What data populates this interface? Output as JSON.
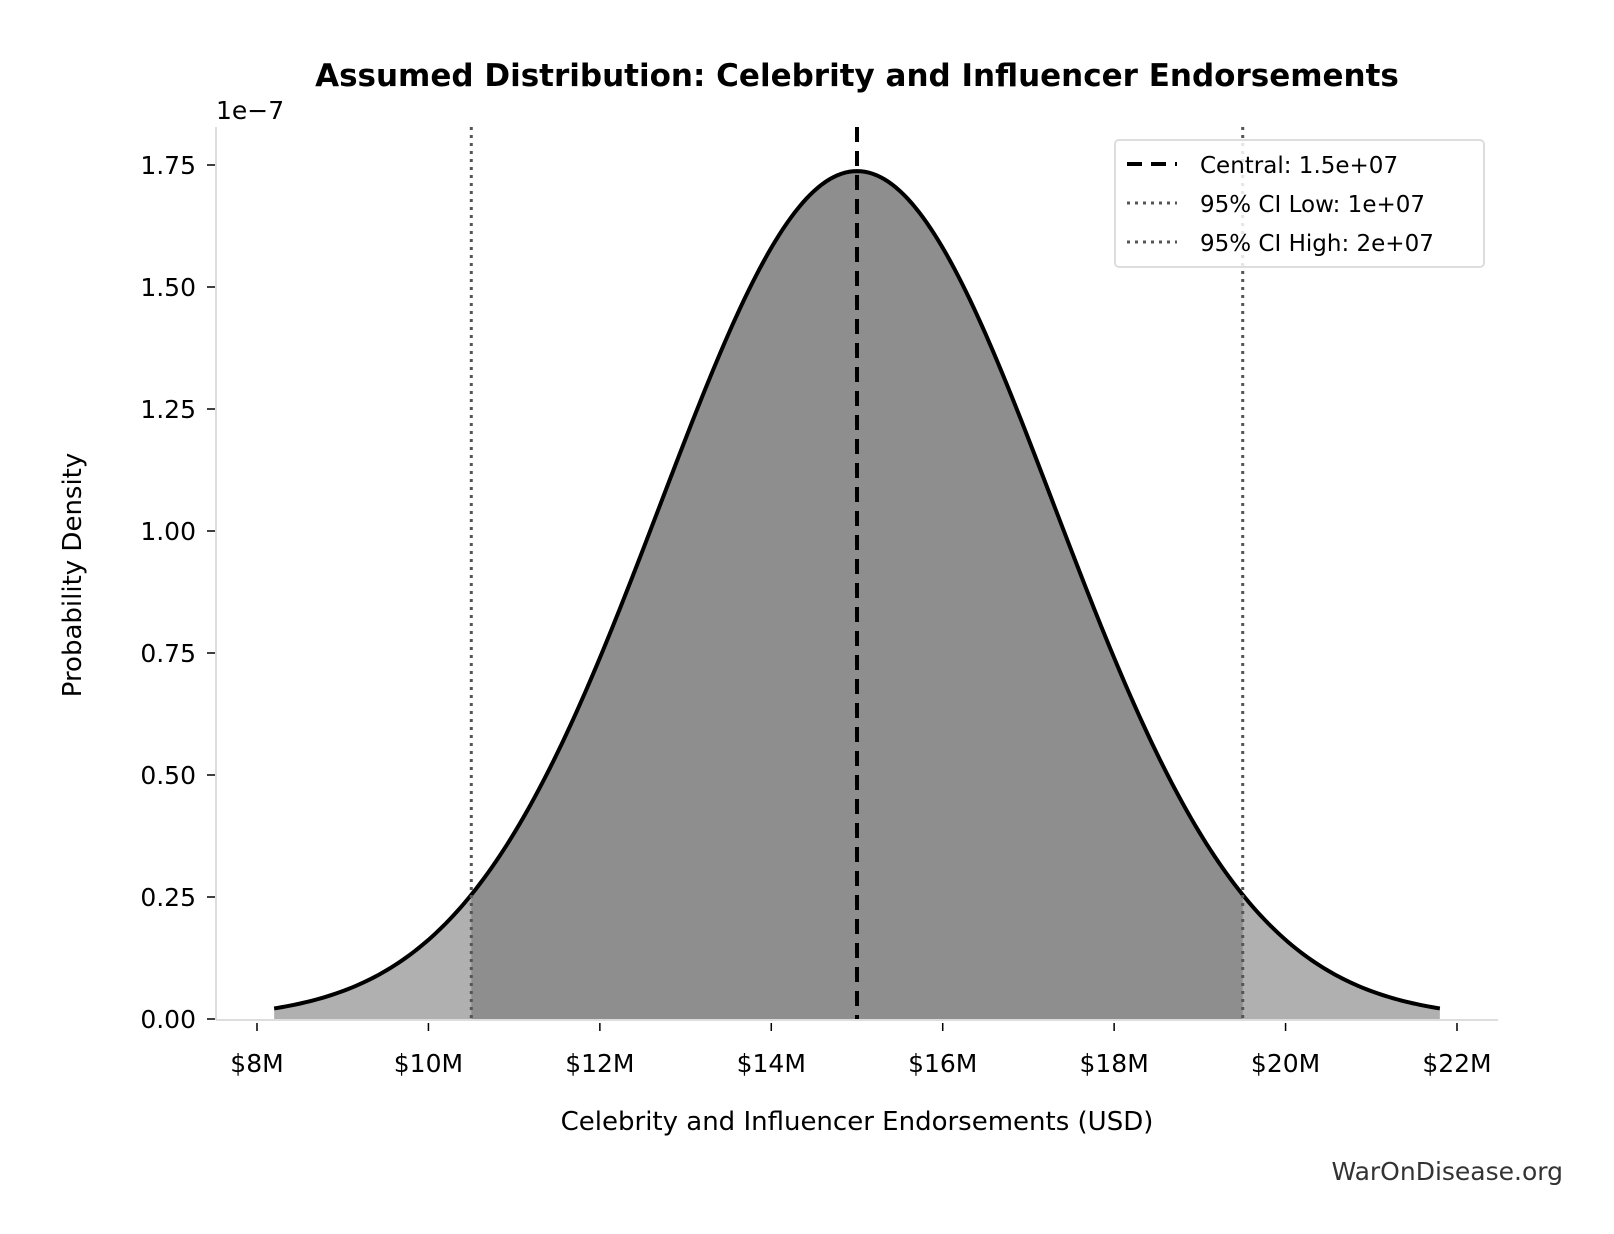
{
  "chart_data": {
    "type": "area",
    "title": "Assumed Distribution: Celebrity and Influencer Endorsements",
    "xlabel": "Celebrity and Influencer Endorsements (USD)",
    "ylabel": "Probability Density",
    "y_offset_label": "1e−7",
    "distribution": "normal",
    "mean": 15000000,
    "std": 2296000,
    "curve_x_range": [
      8200000,
      21800000
    ],
    "ci_low": 10500000,
    "ci_high": 19500000,
    "xlim": [
      7500000,
      22500000
    ],
    "ylim": [
      0,
      1.82e-07
    ],
    "x_ticks": [
      8000000,
      10000000,
      12000000,
      14000000,
      16000000,
      18000000,
      20000000,
      22000000
    ],
    "x_tick_labels": [
      "$8M",
      "$10M",
      "$12M",
      "$14M",
      "$16M",
      "$18M",
      "$20M",
      "$22M"
    ],
    "y_ticks": [
      0,
      0.25,
      0.5,
      0.75,
      1.0,
      1.25,
      1.5,
      1.75
    ],
    "y_tick_labels": [
      "0.00",
      "0.25",
      "0.50",
      "0.75",
      "1.00",
      "1.25",
      "1.50",
      "1.75"
    ],
    "y_scale": 1e-07,
    "grid": false,
    "legend_placement": "upper-right",
    "legend": [
      {
        "label": "Central: 1.5e+07",
        "style": "dashed",
        "color": "#000000"
      },
      {
        "label": "95% CI Low: 1e+07",
        "style": "dotted",
        "color": "#555555"
      },
      {
        "label": "95% CI High: 2e+07",
        "style": "dotted",
        "color": "#555555"
      }
    ],
    "colors": {
      "outer_fill": "#b0b0b0",
      "ci_fill": "#8e8e8e",
      "curve": "#000000"
    }
  },
  "watermark": "WarOnDisease.org"
}
